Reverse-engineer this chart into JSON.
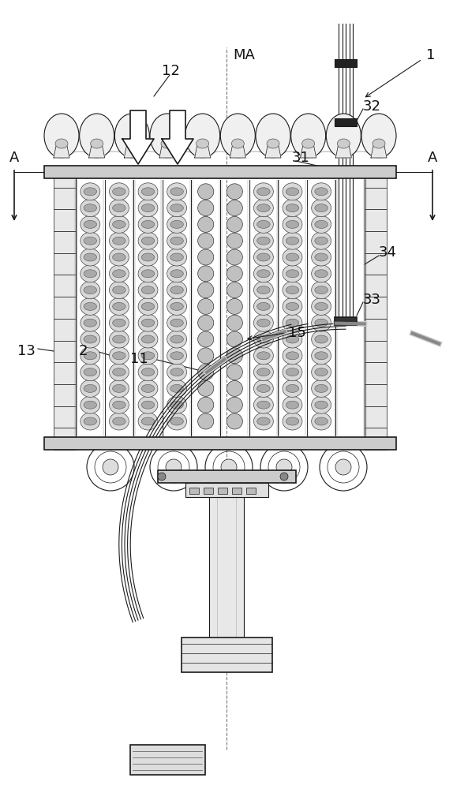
{
  "bg": "#ffffff",
  "lc": "#1a1a1a",
  "gray1": "#cccccc",
  "gray2": "#e0e0e0",
  "gray3": "#aaaaaa",
  "gray4": "#888888",
  "gray5": "#555555",
  "darkfill": "#333333",
  "figsize": [
    5.74,
    10.0
  ],
  "dpi": 100,
  "xlim": [
    0,
    574
  ],
  "ylim": [
    0,
    1000
  ],
  "label_fs": 13,
  "label_color": "#111111"
}
